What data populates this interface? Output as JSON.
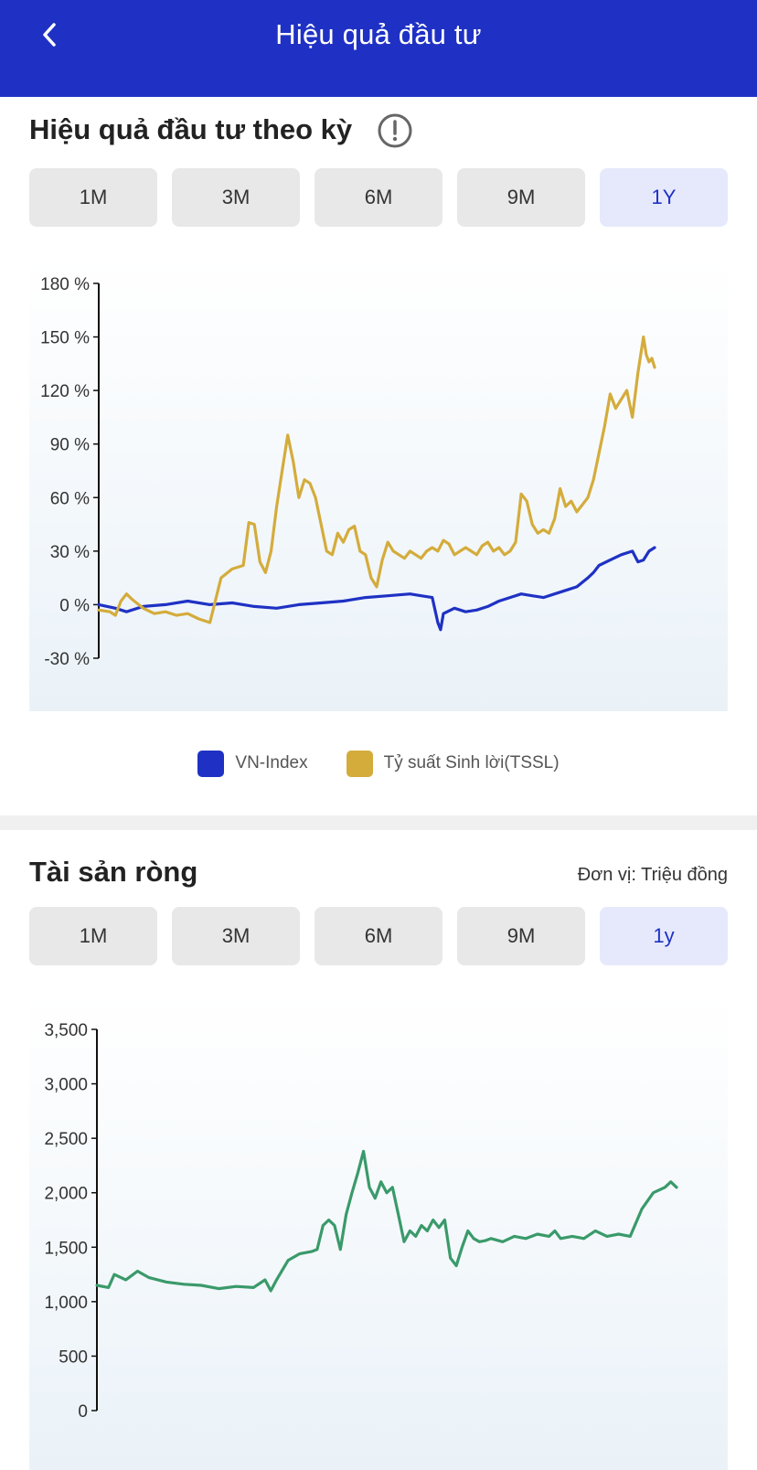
{
  "header": {
    "title": "Hiệu quả đầu tư",
    "back_icon": "chevron-left-icon"
  },
  "performance": {
    "title": "Hiệu quả đầu tư theo kỳ",
    "info_icon": "exclamation-circle-icon",
    "tabs": [
      {
        "label": "1M"
      },
      {
        "label": "3M"
      },
      {
        "label": "6M"
      },
      {
        "label": "9M"
      },
      {
        "label": "1Y",
        "active": true
      }
    ],
    "legend": [
      {
        "label": "VN-Index",
        "color": "#1f31c4"
      },
      {
        "label": "Tỷ suất Sinh lời(TSSL)",
        "color": "#d4ac3c"
      }
    ]
  },
  "net_assets": {
    "title": "Tài sản ròng",
    "unit": "Đơn vị: Triệu đồng",
    "tabs": [
      {
        "label": "1M"
      },
      {
        "label": "3M"
      },
      {
        "label": "6M"
      },
      {
        "label": "9M"
      },
      {
        "label": "1y",
        "active": true
      }
    ]
  },
  "chart_data": [
    {
      "type": "line",
      "yticks": [
        "180 %",
        "150 %",
        "120 %",
        "90 %",
        "60 %",
        "30 %",
        "0 %",
        "-30 %"
      ],
      "ylim": [
        -30,
        180
      ],
      "xlim": [
        0,
        100
      ],
      "grid": false,
      "legend_position": "bottom",
      "series": [
        {
          "name": "VN-Index",
          "color": "#1f31c4",
          "points": [
            [
              0,
              0
            ],
            [
              3,
              -2
            ],
            [
              5,
              -4
            ],
            [
              8,
              -1
            ],
            [
              12,
              0
            ],
            [
              16,
              2
            ],
            [
              20,
              0
            ],
            [
              24,
              1
            ],
            [
              28,
              -1
            ],
            [
              32,
              -2
            ],
            [
              36,
              0
            ],
            [
              40,
              1
            ],
            [
              44,
              2
            ],
            [
              48,
              4
            ],
            [
              52,
              5
            ],
            [
              56,
              6
            ],
            [
              58,
              5
            ],
            [
              60,
              4
            ],
            [
              61,
              -10
            ],
            [
              61.5,
              -14
            ],
            [
              62,
              -5
            ],
            [
              64,
              -2
            ],
            [
              66,
              -4
            ],
            [
              68,
              -3
            ],
            [
              70,
              -1
            ],
            [
              72,
              2
            ],
            [
              74,
              4
            ],
            [
              76,
              6
            ],
            [
              78,
              5
            ],
            [
              80,
              4
            ],
            [
              82,
              6
            ],
            [
              84,
              8
            ],
            [
              86,
              10
            ],
            [
              88,
              15
            ],
            [
              89,
              18
            ],
            [
              90,
              22
            ],
            [
              92,
              25
            ],
            [
              94,
              28
            ],
            [
              96,
              30
            ],
            [
              97,
              24
            ],
            [
              98,
              25
            ],
            [
              99,
              30
            ],
            [
              100,
              32
            ]
          ]
        },
        {
          "name": "Tỷ suất Sinh lời(TSSL)",
          "color": "#d4ac3c",
          "points": [
            [
              0,
              -3
            ],
            [
              2,
              -4
            ],
            [
              3,
              -6
            ],
            [
              4,
              2
            ],
            [
              5,
              6
            ],
            [
              6,
              3
            ],
            [
              8,
              -2
            ],
            [
              10,
              -5
            ],
            [
              12,
              -4
            ],
            [
              14,
              -6
            ],
            [
              16,
              -5
            ],
            [
              18,
              -8
            ],
            [
              20,
              -10
            ],
            [
              22,
              15
            ],
            [
              24,
              20
            ],
            [
              26,
              22
            ],
            [
              27,
              46
            ],
            [
              28,
              45
            ],
            [
              29,
              24
            ],
            [
              30,
              18
            ],
            [
              31,
              30
            ],
            [
              32,
              55
            ],
            [
              33,
              75
            ],
            [
              34,
              95
            ],
            [
              35,
              80
            ],
            [
              36,
              60
            ],
            [
              37,
              70
            ],
            [
              38,
              68
            ],
            [
              39,
              60
            ],
            [
              40,
              45
            ],
            [
              41,
              30
            ],
            [
              42,
              28
            ],
            [
              43,
              40
            ],
            [
              44,
              35
            ],
            [
              45,
              42
            ],
            [
              46,
              44
            ],
            [
              47,
              30
            ],
            [
              48,
              28
            ],
            [
              49,
              15
            ],
            [
              50,
              10
            ],
            [
              51,
              25
            ],
            [
              52,
              35
            ],
            [
              53,
              30
            ],
            [
              54,
              28
            ],
            [
              55,
              26
            ],
            [
              56,
              30
            ],
            [
              57,
              28
            ],
            [
              58,
              26
            ],
            [
              59,
              30
            ],
            [
              60,
              32
            ],
            [
              61,
              30
            ],
            [
              62,
              36
            ],
            [
              63,
              34
            ],
            [
              64,
              28
            ],
            [
              65,
              30
            ],
            [
              66,
              32
            ],
            [
              67,
              30
            ],
            [
              68,
              28
            ],
            [
              69,
              33
            ],
            [
              70,
              35
            ],
            [
              71,
              30
            ],
            [
              72,
              32
            ],
            [
              73,
              28
            ],
            [
              74,
              30
            ],
            [
              75,
              35
            ],
            [
              76,
              62
            ],
            [
              77,
              58
            ],
            [
              78,
              45
            ],
            [
              79,
              40
            ],
            [
              80,
              42
            ],
            [
              81,
              40
            ],
            [
              82,
              48
            ],
            [
              83,
              65
            ],
            [
              84,
              55
            ],
            [
              85,
              58
            ],
            [
              86,
              52
            ],
            [
              87,
              56
            ],
            [
              88,
              60
            ],
            [
              89,
              70
            ],
            [
              90,
              85
            ],
            [
              91,
              100
            ],
            [
              92,
              118
            ],
            [
              93,
              110
            ],
            [
              94,
              115
            ],
            [
              95,
              120
            ],
            [
              96,
              105
            ],
            [
              97,
              130
            ],
            [
              98,
              150
            ],
            [
              98.5,
              140
            ],
            [
              99,
              136
            ],
            [
              99.5,
              138
            ],
            [
              100,
              133
            ]
          ]
        }
      ]
    },
    {
      "type": "line",
      "yticks": [
        "3,500",
        "3,000",
        "2,500",
        "2,000",
        "1,500",
        "1,000",
        "500",
        "0"
      ],
      "ylim": [
        0,
        3500
      ],
      "xlim": [
        0,
        100
      ],
      "grid": false,
      "series": [
        {
          "color": "#3a9a6a",
          "points": [
            [
              0,
              1150
            ],
            [
              2,
              1130
            ],
            [
              3,
              1250
            ],
            [
              5,
              1200
            ],
            [
              7,
              1280
            ],
            [
              9,
              1220
            ],
            [
              12,
              1180
            ],
            [
              15,
              1160
            ],
            [
              18,
              1150
            ],
            [
              21,
              1120
            ],
            [
              24,
              1140
            ],
            [
              27,
              1130
            ],
            [
              29,
              1200
            ],
            [
              30,
              1100
            ],
            [
              31,
              1200
            ],
            [
              33,
              1380
            ],
            [
              35,
              1440
            ],
            [
              37,
              1460
            ],
            [
              38,
              1480
            ],
            [
              39,
              1700
            ],
            [
              40,
              1750
            ],
            [
              41,
              1700
            ],
            [
              42,
              1480
            ],
            [
              43,
              1800
            ],
            [
              44,
              2000
            ],
            [
              45,
              2180
            ],
            [
              46,
              2380
            ],
            [
              47,
              2050
            ],
            [
              48,
              1950
            ],
            [
              49,
              2100
            ],
            [
              50,
              2000
            ],
            [
              51,
              2050
            ],
            [
              52,
              1800
            ],
            [
              53,
              1550
            ],
            [
              54,
              1650
            ],
            [
              55,
              1600
            ],
            [
              56,
              1700
            ],
            [
              57,
              1650
            ],
            [
              58,
              1750
            ],
            [
              59,
              1680
            ],
            [
              60,
              1750
            ],
            [
              61,
              1400
            ],
            [
              62,
              1330
            ],
            [
              63,
              1500
            ],
            [
              64,
              1650
            ],
            [
              65,
              1580
            ],
            [
              66,
              1550
            ],
            [
              67,
              1560
            ],
            [
              68,
              1580
            ],
            [
              70,
              1550
            ],
            [
              72,
              1600
            ],
            [
              74,
              1580
            ],
            [
              76,
              1620
            ],
            [
              78,
              1600
            ],
            [
              79,
              1650
            ],
            [
              80,
              1580
            ],
            [
              82,
              1600
            ],
            [
              84,
              1580
            ],
            [
              86,
              1650
            ],
            [
              88,
              1600
            ],
            [
              90,
              1620
            ],
            [
              92,
              1600
            ],
            [
              94,
              1850
            ],
            [
              96,
              2000
            ],
            [
              98,
              2050
            ],
            [
              99,
              2100
            ],
            [
              100,
              2050
            ]
          ]
        }
      ]
    }
  ]
}
